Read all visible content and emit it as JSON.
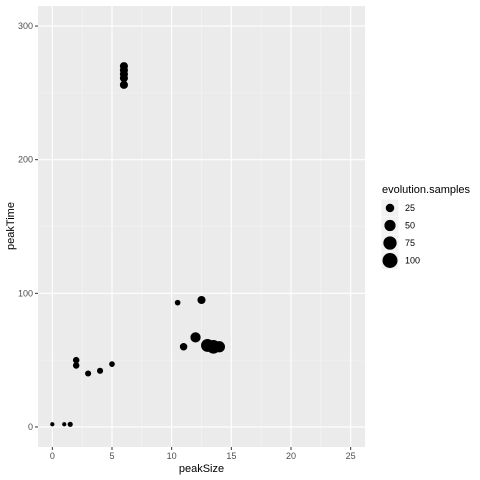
{
  "chart_data": {
    "type": "scatter",
    "xlabel": "peakSize",
    "ylabel": "peakTime",
    "xlim": [
      -1.2,
      26.2
    ],
    "ylim": [
      -15,
      315
    ],
    "x_ticks": [
      0,
      5,
      10,
      15,
      20,
      25
    ],
    "y_ticks": [
      0,
      100,
      200,
      300
    ],
    "grid": true,
    "background": "#ebebeb",
    "point_color": "#000000",
    "legend": {
      "title": "evolution.samples",
      "placement": "right",
      "entries": [
        {
          "label": "25",
          "value": 25
        },
        {
          "label": "50",
          "value": 50
        },
        {
          "label": "75",
          "value": 75
        },
        {
          "label": "100",
          "value": 100
        }
      ]
    },
    "points": [
      {
        "x": 0,
        "y": 2,
        "size": 3
      },
      {
        "x": 1,
        "y": 2,
        "size": 3
      },
      {
        "x": 1.5,
        "y": 2,
        "size": 6
      },
      {
        "x": 2,
        "y": 50,
        "size": 12
      },
      {
        "x": 2,
        "y": 46,
        "size": 12
      },
      {
        "x": 3,
        "y": 40,
        "size": 10
      },
      {
        "x": 4,
        "y": 42,
        "size": 10
      },
      {
        "x": 5,
        "y": 47,
        "size": 8
      },
      {
        "x": 6,
        "y": 270,
        "size": 22
      },
      {
        "x": 6,
        "y": 267,
        "size": 22
      },
      {
        "x": 6,
        "y": 264,
        "size": 22
      },
      {
        "x": 6,
        "y": 261,
        "size": 22
      },
      {
        "x": 6,
        "y": 256,
        "size": 22
      },
      {
        "x": 10.5,
        "y": 93,
        "size": 8
      },
      {
        "x": 11,
        "y": 60,
        "size": 18
      },
      {
        "x": 12,
        "y": 67,
        "size": 40
      },
      {
        "x": 12.5,
        "y": 95,
        "size": 22
      },
      {
        "x": 13,
        "y": 61,
        "size": 70
      },
      {
        "x": 13.5,
        "y": 60,
        "size": 80
      },
      {
        "x": 14,
        "y": 60,
        "size": 50
      }
    ]
  }
}
